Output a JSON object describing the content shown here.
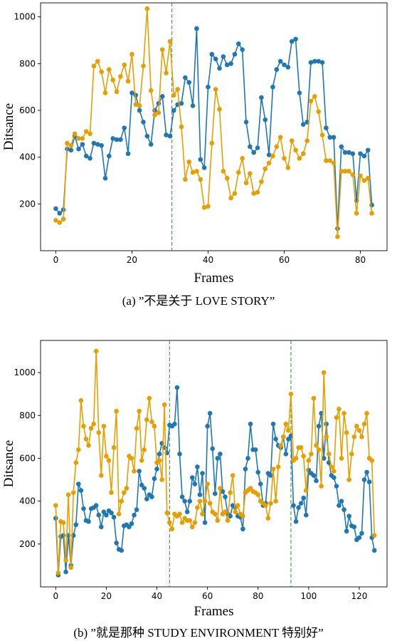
{
  "colors": {
    "series_a": "#1f77b4",
    "series_b": "#e69f00",
    "vline": "#2e8b2e"
  },
  "chart_data": [
    {
      "type": "line",
      "caption": "(a) ”不是关于 LOVE STORY”",
      "xlabel": "Frames",
      "ylabel": "Ditsance",
      "xlim": [
        -4,
        87
      ],
      "ylim": [
        0,
        1060
      ],
      "xticks": [
        0,
        20,
        40,
        60,
        80
      ],
      "yticks": [
        200,
        400,
        600,
        800,
        1000
      ],
      "vlines": [
        30.5
      ],
      "grid": false,
      "series": [
        {
          "color": "#1f77b4",
          "x": [
            0,
            1,
            2,
            3,
            4,
            5,
            6,
            7,
            8,
            9,
            10,
            11,
            12,
            13,
            14,
            15,
            16,
            17,
            18,
            19,
            20,
            21,
            22,
            23,
            24,
            25,
            26,
            27,
            28,
            29,
            30,
            31,
            32,
            33,
            34,
            35,
            36,
            37,
            38,
            39,
            40,
            41,
            42,
            43,
            44,
            45,
            46,
            47,
            48,
            49,
            50,
            51,
            52,
            53,
            54,
            55,
            56,
            57,
            58,
            59,
            60,
            61,
            62,
            63,
            64,
            65,
            66,
            67,
            68,
            69,
            70,
            71,
            72,
            73,
            74,
            75,
            76,
            77,
            78,
            79,
            80,
            81,
            82,
            83
          ],
          "y": [
            180,
            160,
            175,
            435,
            430,
            490,
            435,
            455,
            405,
            395,
            460,
            455,
            450,
            310,
            405,
            480,
            475,
            475,
            525,
            415,
            675,
            665,
            600,
            550,
            490,
            455,
            600,
            630,
            660,
            495,
            490,
            600,
            625,
            630,
            740,
            720,
            620,
            950,
            390,
            355,
            700,
            840,
            820,
            780,
            830,
            795,
            800,
            840,
            885,
            860,
            550,
            445,
            420,
            440,
            655,
            560,
            410,
            700,
            775,
            810,
            795,
            785,
            895,
            905,
            675,
            540,
            550,
            805,
            810,
            810,
            805,
            525,
            485,
            485,
            95,
            445,
            420,
            420,
            415,
            215,
            415,
            405,
            430,
            195
          ]
        },
        {
          "color": "#e69f00",
          "x": [
            0,
            1,
            2,
            3,
            4,
            5,
            6,
            7,
            8,
            9,
            10,
            11,
            12,
            13,
            14,
            15,
            16,
            17,
            18,
            19,
            20,
            21,
            22,
            23,
            24,
            25,
            26,
            27,
            28,
            29,
            30,
            31,
            32,
            33,
            34,
            35,
            36,
            37,
            38,
            39,
            40,
            41,
            42,
            43,
            44,
            45,
            46,
            47,
            48,
            49,
            50,
            51,
            52,
            53,
            54,
            55,
            56,
            57,
            58,
            59,
            60,
            61,
            62,
            63,
            64,
            65,
            66,
            67,
            68,
            69,
            70,
            71,
            72,
            73,
            74,
            75,
            76,
            77,
            78,
            79,
            80,
            81,
            82,
            83
          ],
          "y": [
            130,
            120,
            135,
            460,
            450,
            500,
            480,
            480,
            510,
            500,
            790,
            810,
            765,
            675,
            775,
            730,
            680,
            745,
            795,
            725,
            840,
            625,
            620,
            790,
            1035,
            685,
            580,
            590,
            860,
            760,
            895,
            665,
            690,
            530,
            305,
            380,
            335,
            340,
            305,
            185,
            190,
            460,
            690,
            605,
            340,
            310,
            225,
            245,
            335,
            395,
            290,
            330,
            245,
            250,
            295,
            350,
            375,
            405,
            445,
            485,
            395,
            355,
            470,
            430,
            395,
            415,
            470,
            640,
            660,
            595,
            495,
            385,
            385,
            375,
            60,
            340,
            340,
            340,
            325,
            160,
            320,
            300,
            310,
            160
          ]
        }
      ]
    },
    {
      "type": "line",
      "caption": "(b) ”就是那种 STUDY ENVIRONMENT 特别好”",
      "xlabel": "Frames",
      "ylabel": "Ditsance",
      "xlim": [
        -6,
        131
      ],
      "ylim": [
        0,
        1150
      ],
      "xticks": [
        0,
        20,
        40,
        60,
        80,
        100,
        120
      ],
      "yticks": [
        200,
        400,
        600,
        800,
        1000
      ],
      "vlines": [
        45,
        93
      ],
      "grid": false,
      "series": [
        {
          "color": "#1f77b4",
          "x": [
            0,
            1,
            2,
            3,
            4,
            5,
            6,
            7,
            8,
            9,
            10,
            11,
            12,
            13,
            14,
            15,
            16,
            17,
            18,
            19,
            20,
            21,
            22,
            23,
            24,
            25,
            26,
            27,
            28,
            29,
            30,
            31,
            32,
            33,
            34,
            35,
            36,
            37,
            38,
            39,
            40,
            41,
            42,
            43,
            44,
            45,
            46,
            47,
            48,
            49,
            50,
            51,
            52,
            53,
            54,
            55,
            56,
            57,
            58,
            59,
            60,
            61,
            62,
            63,
            64,
            65,
            66,
            67,
            68,
            69,
            70,
            71,
            72,
            73,
            74,
            75,
            76,
            77,
            78,
            79,
            80,
            81,
            82,
            83,
            84,
            85,
            86,
            87,
            88,
            89,
            90,
            91,
            92,
            93,
            94,
            95,
            96,
            97,
            98,
            99,
            100,
            101,
            102,
            103,
            104,
            105,
            106,
            107,
            108,
            109,
            110,
            111,
            112,
            113,
            114,
            115,
            116,
            117,
            118,
            119,
            120,
            121,
            122,
            123,
            124,
            125,
            126
          ],
          "y": [
            320,
            55,
            235,
            240,
            70,
            240,
            100,
            240,
            290,
            480,
            450,
            365,
            310,
            305,
            365,
            370,
            380,
            335,
            280,
            350,
            335,
            355,
            345,
            325,
            205,
            175,
            170,
            285,
            290,
            280,
            295,
            335,
            360,
            540,
            475,
            460,
            410,
            430,
            420,
            505,
            550,
            620,
            670,
            650,
            625,
            755,
            750,
            760,
            930,
            620,
            420,
            400,
            350,
            400,
            510,
            480,
            560,
            430,
            530,
            300,
            750,
            810,
            645,
            435,
            600,
            620,
            445,
            420,
            340,
            330,
            380,
            370,
            330,
            325,
            270,
            550,
            600,
            760,
            640,
            640,
            535,
            480,
            380,
            390,
            530,
            520,
            760,
            690,
            660,
            650,
            700,
            620,
            690,
            705,
            380,
            305,
            370,
            390,
            415,
            335,
            545,
            530,
            520,
            495,
            750,
            810,
            600,
            760,
            580,
            520,
            510,
            470,
            380,
            400,
            360,
            260,
            330,
            285,
            280,
            220,
            230,
            250,
            500,
            535,
            490,
            230,
            170
          ]
        },
        {
          "color": "#e69f00",
          "x": [
            0,
            1,
            2,
            3,
            4,
            5,
            6,
            7,
            8,
            9,
            10,
            11,
            12,
            13,
            14,
            15,
            16,
            17,
            18,
            19,
            20,
            21,
            22,
            23,
            24,
            25,
            26,
            27,
            28,
            29,
            30,
            31,
            32,
            33,
            34,
            35,
            36,
            37,
            38,
            39,
            40,
            41,
            42,
            43,
            44,
            45,
            46,
            47,
            48,
            49,
            50,
            51,
            52,
            53,
            54,
            55,
            56,
            57,
            58,
            59,
            60,
            61,
            62,
            63,
            64,
            65,
            66,
            67,
            68,
            69,
            70,
            71,
            72,
            73,
            74,
            75,
            76,
            77,
            78,
            79,
            80,
            81,
            82,
            83,
            84,
            85,
            86,
            87,
            88,
            89,
            90,
            91,
            92,
            93,
            94,
            95,
            96,
            97,
            98,
            99,
            100,
            101,
            102,
            103,
            104,
            105,
            106,
            107,
            108,
            109,
            110,
            111,
            112,
            113,
            114,
            115,
            116,
            117,
            118,
            119,
            120,
            121,
            122,
            123,
            124,
            125,
            126
          ],
          "y": [
            380,
            65,
            305,
            300,
            125,
            430,
            90,
            440,
            580,
            640,
            870,
            750,
            690,
            660,
            740,
            760,
            1100,
            720,
            520,
            750,
            610,
            590,
            440,
            650,
            820,
            340,
            400,
            440,
            460,
            610,
            600,
            540,
            740,
            820,
            590,
            640,
            780,
            880,
            770,
            750,
            580,
            590,
            500,
            850,
            345,
            300,
            270,
            340,
            330,
            340,
            300,
            320,
            310,
            310,
            280,
            300,
            370,
            400,
            340,
            400,
            480,
            390,
            350,
            340,
            310,
            460,
            340,
            350,
            310,
            440,
            520,
            350,
            380,
            340,
            330,
            440,
            450,
            460,
            445,
            440,
            430,
            400,
            390,
            380,
            320,
            390,
            550,
            400,
            560,
            660,
            700,
            760,
            730,
            900,
            590,
            600,
            650,
            650,
            610,
            450,
            590,
            620,
            880,
            660,
            640,
            470,
            1000,
            700,
            620,
            560,
            540,
            790,
            830,
            600,
            810,
            720,
            500,
            620,
            700,
            750,
            730,
            700,
            760,
            810,
            600,
            590,
            240
          ]
        }
      ]
    }
  ]
}
